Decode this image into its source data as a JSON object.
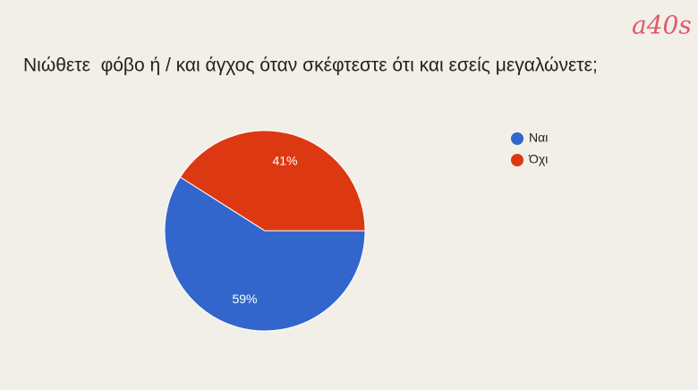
{
  "brand": "a40s",
  "chart_data": {
    "type": "pie",
    "title": "Νιώθετε  φόβο ή / και άγχος όταν σκέφτεστε ότι και εσείς μεγαλώνετε;",
    "categories": [
      "Ναι",
      "Όχι"
    ],
    "values": [
      59,
      41
    ],
    "value_labels": [
      "59%",
      "41%"
    ],
    "colors": [
      "#3366cc",
      "#dc3912"
    ],
    "legend": "right"
  }
}
